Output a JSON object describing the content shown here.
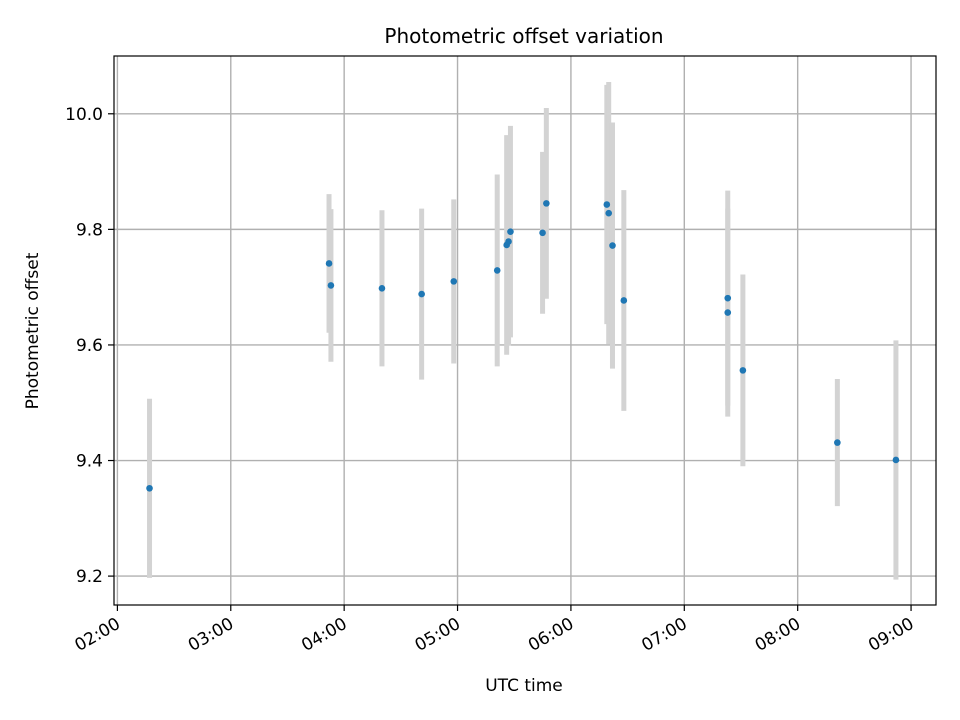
{
  "chart_data": {
    "type": "scatter",
    "title": "Photometric offset variation",
    "xlabel": "UTC time",
    "ylabel": "Photometric offset",
    "x_tick_labels": [
      "02:00",
      "03:00",
      "04:00",
      "05:00",
      "06:00",
      "07:00",
      "08:00",
      "09:00"
    ],
    "x_tick_hours": [
      2,
      3,
      4,
      5,
      6,
      7,
      8,
      9
    ],
    "y_ticks": [
      9.2,
      9.4,
      9.6,
      9.8,
      10.0
    ],
    "y_tick_labels": [
      "9.2",
      "9.4",
      "9.6",
      "9.8",
      "10.0"
    ],
    "xlim_hours": [
      1.97,
      9.22
    ],
    "ylim": [
      9.15,
      10.1
    ],
    "grid": true,
    "point_color": "#1f77b4",
    "errorbar_color": "#d3d3d3",
    "points": [
      {
        "t": "02:17",
        "y": 9.352,
        "err": 0.155
      },
      {
        "t": "03:52",
        "y": 9.741,
        "err": 0.12
      },
      {
        "t": "03:53",
        "y": 9.703,
        "err": 0.132
      },
      {
        "t": "04:20",
        "y": 9.698,
        "err": 0.135
      },
      {
        "t": "04:41",
        "y": 9.688,
        "err": 0.148
      },
      {
        "t": "04:58",
        "y": 9.71,
        "err": 0.142
      },
      {
        "t": "05:21",
        "y": 9.729,
        "err": 0.166
      },
      {
        "t": "05:26",
        "y": 9.773,
        "err": 0.19
      },
      {
        "t": "05:27",
        "y": 9.779,
        "err": 0.18
      },
      {
        "t": "05:28",
        "y": 9.796,
        "err": 0.183
      },
      {
        "t": "05:45",
        "y": 9.794,
        "err": 0.14
      },
      {
        "t": "05:47",
        "y": 9.845,
        "err": 0.165
      },
      {
        "t": "06:19",
        "y": 9.843,
        "err": 0.207
      },
      {
        "t": "06:20",
        "y": 9.828,
        "err": 0.227
      },
      {
        "t": "06:22",
        "y": 9.772,
        "err": 0.213
      },
      {
        "t": "06:28",
        "y": 9.677,
        "err": 0.191
      },
      {
        "t": "07:23",
        "y": 9.681,
        "err": 0.186
      },
      {
        "t": "07:23",
        "y": 9.656,
        "err": 0.18
      },
      {
        "t": "07:31",
        "y": 9.556,
        "err": 0.166
      },
      {
        "t": "08:21",
        "y": 9.431,
        "err": 0.11
      },
      {
        "t": "08:52",
        "y": 9.401,
        "err": 0.207
      }
    ]
  }
}
